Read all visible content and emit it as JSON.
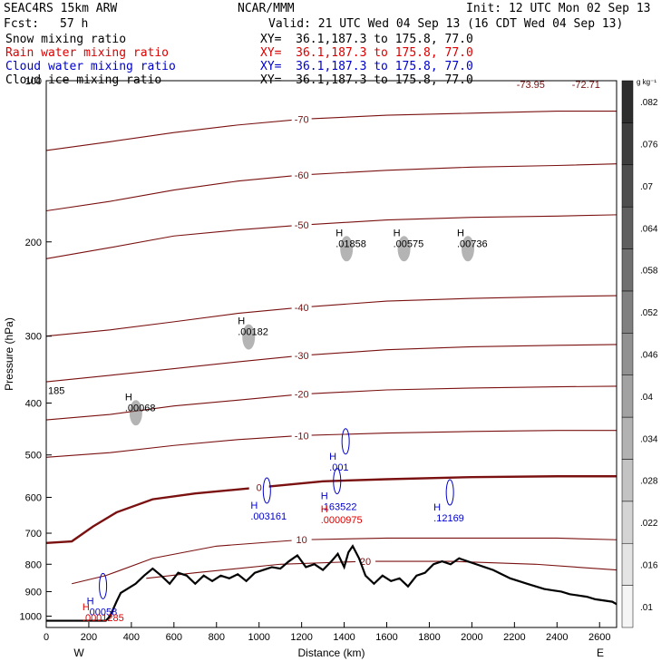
{
  "header": {
    "model": "SEAC4RS 15km ARW",
    "org": "NCAR/MMM",
    "init": "Init: 12 UTC Mon 02 Sep 13",
    "fcst_label": "Fcst:",
    "fcst_value": "57 h",
    "valid": "Valid: 21 UTC Wed 04 Sep 13 (16 CDT Wed 04 Sep 13)"
  },
  "fields": [
    {
      "name": "Snow mixing ratio",
      "xy": "XY=  36.1,187.3 to 175.8, 77.0",
      "color": "#000000"
    },
    {
      "name": "Rain water mixing ratio",
      "xy": "XY=  36.1,187.3 to 175.8, 77.0",
      "color": "#dd0000"
    },
    {
      "name": "Cloud water mixing ratio",
      "xy": "XY=  36.1,187.3 to 175.8, 77.0",
      "color": "#0000cc"
    },
    {
      "name": "Cloud ice mixing ratio",
      "xy": "XY=  36.1,187.3 to 175.8, 77.0",
      "color": "#000000"
    }
  ],
  "chart_data": {
    "type": "line",
    "xlabel": "Distance (km)",
    "ylabel": "Pressure (hPa)",
    "xlim": [
      0,
      2680
    ],
    "ylim": [
      1050,
      100
    ],
    "y_scale": "log",
    "xticks": [
      0,
      200,
      400,
      600,
      800,
      1000,
      1200,
      1400,
      1600,
      1800,
      2000,
      2200,
      2400,
      2600
    ],
    "yticks": [
      100,
      200,
      300,
      400,
      500,
      600,
      700,
      800,
      900,
      1000
    ],
    "ytick_labels": [
      "100",
      "200",
      "300",
      "400",
      "500",
      "600",
      "700",
      "800",
      "900",
      "1000"
    ],
    "end_labels": [
      "W",
      "E"
    ],
    "colorbar": {
      "unit": "g kg⁻¹",
      "levels": [
        "0.01",
        "0.016",
        "0.022",
        "0.028",
        "0.034",
        "0.04",
        "0.046",
        "0.052",
        "0.058",
        "0.064",
        "0.07",
        "0.076",
        "0.082"
      ],
      "labels": [
        ".01",
        ".016",
        ".022",
        ".028",
        ".034",
        ".04",
        ".046",
        ".052",
        ".058",
        ".064",
        ".07",
        ".076",
        ".082"
      ]
    },
    "terrain": {
      "x": [
        0,
        280,
        300,
        330,
        350,
        380,
        420,
        460,
        500,
        540,
        580,
        620,
        660,
        700,
        740,
        780,
        820,
        860,
        900,
        940,
        980,
        1020,
        1060,
        1100,
        1140,
        1180,
        1220,
        1260,
        1300,
        1340,
        1370,
        1400,
        1420,
        1440,
        1470,
        1500,
        1540,
        1580,
        1620,
        1660,
        1700,
        1740,
        1780,
        1820,
        1860,
        1900,
        1940,
        1980,
        2020,
        2060,
        2100,
        2140,
        2180,
        2220,
        2260,
        2300,
        2340,
        2380,
        2420,
        2460,
        2500,
        2540,
        2580,
        2620,
        2660,
        2680
      ],
      "y": [
        1020,
        1020,
        1000,
        940,
        905,
        890,
        870,
        840,
        815,
        840,
        870,
        830,
        840,
        870,
        840,
        860,
        840,
        850,
        835,
        860,
        830,
        820,
        810,
        815,
        790,
        770,
        810,
        800,
        820,
        790,
        765,
        810,
        760,
        740,
        780,
        840,
        870,
        840,
        860,
        850,
        880,
        840,
        830,
        800,
        790,
        800,
        780,
        790,
        800,
        810,
        820,
        835,
        850,
        860,
        870,
        880,
        890,
        895,
        900,
        910,
        915,
        920,
        930,
        935,
        940,
        950
      ]
    },
    "temperature_contours": [
      {
        "label": "20",
        "x": [
          470,
          700,
          1100,
          1500,
          1900,
          2300,
          2680
        ],
        "y": [
          850,
          830,
          800,
          790,
          790,
          800,
          820
        ]
      },
      {
        "label": "10",
        "x": [
          120,
          280,
          500,
          800,
          1200,
          1600,
          2000,
          2400,
          2680
        ],
        "y": [
          870,
          840,
          780,
          740,
          720,
          715,
          715,
          715,
          720
        ]
      },
      {
        "label": "0",
        "x": [
          0,
          120,
          220,
          330,
          500,
          700,
          1000,
          1300,
          1600,
          2000,
          2400,
          2680
        ],
        "y": [
          730,
          725,
          680,
          640,
          605,
          590,
          575,
          560,
          555,
          550,
          548,
          548
        ]
      },
      {
        "label": "-10",
        "x": [
          0,
          300,
          600,
          900,
          1200,
          1600,
          2000,
          2400,
          2680
        ],
        "y": [
          505,
          495,
          480,
          468,
          460,
          455,
          452,
          450,
          450
        ]
      },
      {
        "label": "-20",
        "x": [
          0,
          300,
          600,
          900,
          1200,
          1600,
          2000,
          2400,
          2680
        ],
        "y": [
          430,
          420,
          405,
          395,
          385,
          378,
          375,
          373,
          372
        ]
      },
      {
        "label": "-30",
        "x": [
          0,
          300,
          600,
          900,
          1200,
          1600,
          2000,
          2400,
          2680
        ],
        "y": [
          365,
          355,
          345,
          335,
          326,
          318,
          314,
          312,
          311
        ]
      },
      {
        "label": "-40",
        "x": [
          0,
          300,
          600,
          900,
          1200,
          1600,
          2000,
          2400,
          2680
        ],
        "y": [
          300,
          292,
          282,
          272,
          265,
          258,
          255,
          253,
          252
        ]
      },
      {
        "label": "-50",
        "x": [
          0,
          300,
          600,
          900,
          1200,
          1600,
          2000,
          2400,
          2680
        ],
        "y": [
          215,
          205,
          195,
          190,
          186,
          182,
          180,
          179,
          178
        ]
      },
      {
        "label": "-60",
        "x": [
          0,
          300,
          600,
          900,
          1200,
          1600,
          2000,
          2400,
          2680
        ],
        "y": [
          175,
          168,
          160,
          154,
          150,
          147,
          145,
          144,
          143
        ]
      },
      {
        "label": "-70",
        "x": [
          0,
          300,
          600,
          900,
          1200,
          1600,
          2000,
          2400,
          2680
        ],
        "y": [
          135,
          130,
          125,
          121,
          118,
          116,
          115,
          114,
          114
        ]
      }
    ],
    "snow_maxima": [
      {
        "x": 1360,
        "y": 195,
        "label": ".01858"
      },
      {
        "x": 1630,
        "y": 195,
        "label": ".00575"
      },
      {
        "x": 1930,
        "y": 195,
        "label": ".00736"
      },
      {
        "x": 900,
        "y": 285,
        "label": ".00182"
      },
      {
        "x": 370,
        "y": 395,
        "label": ".00068"
      }
    ],
    "cloud_water_maxima": [
      {
        "x": 1330,
        "y": 510,
        "label": ".001"
      },
      {
        "x": 1290,
        "y": 605,
        "label": ".163522"
      },
      {
        "x": 960,
        "y": 630,
        "label": ".003161"
      },
      {
        "x": 1820,
        "y": 635,
        "label": ".12169"
      },
      {
        "x": 190,
        "y": 950,
        "label": ".00058"
      }
    ],
    "rain_maxima": [
      {
        "x": 1290,
        "y": 640,
        "label": ".0000975"
      },
      {
        "x": 170,
        "y": 975,
        "label": ".0001285"
      }
    ],
    "corner_labels": [
      "185",
      "-73.95",
      "-72.71"
    ]
  }
}
